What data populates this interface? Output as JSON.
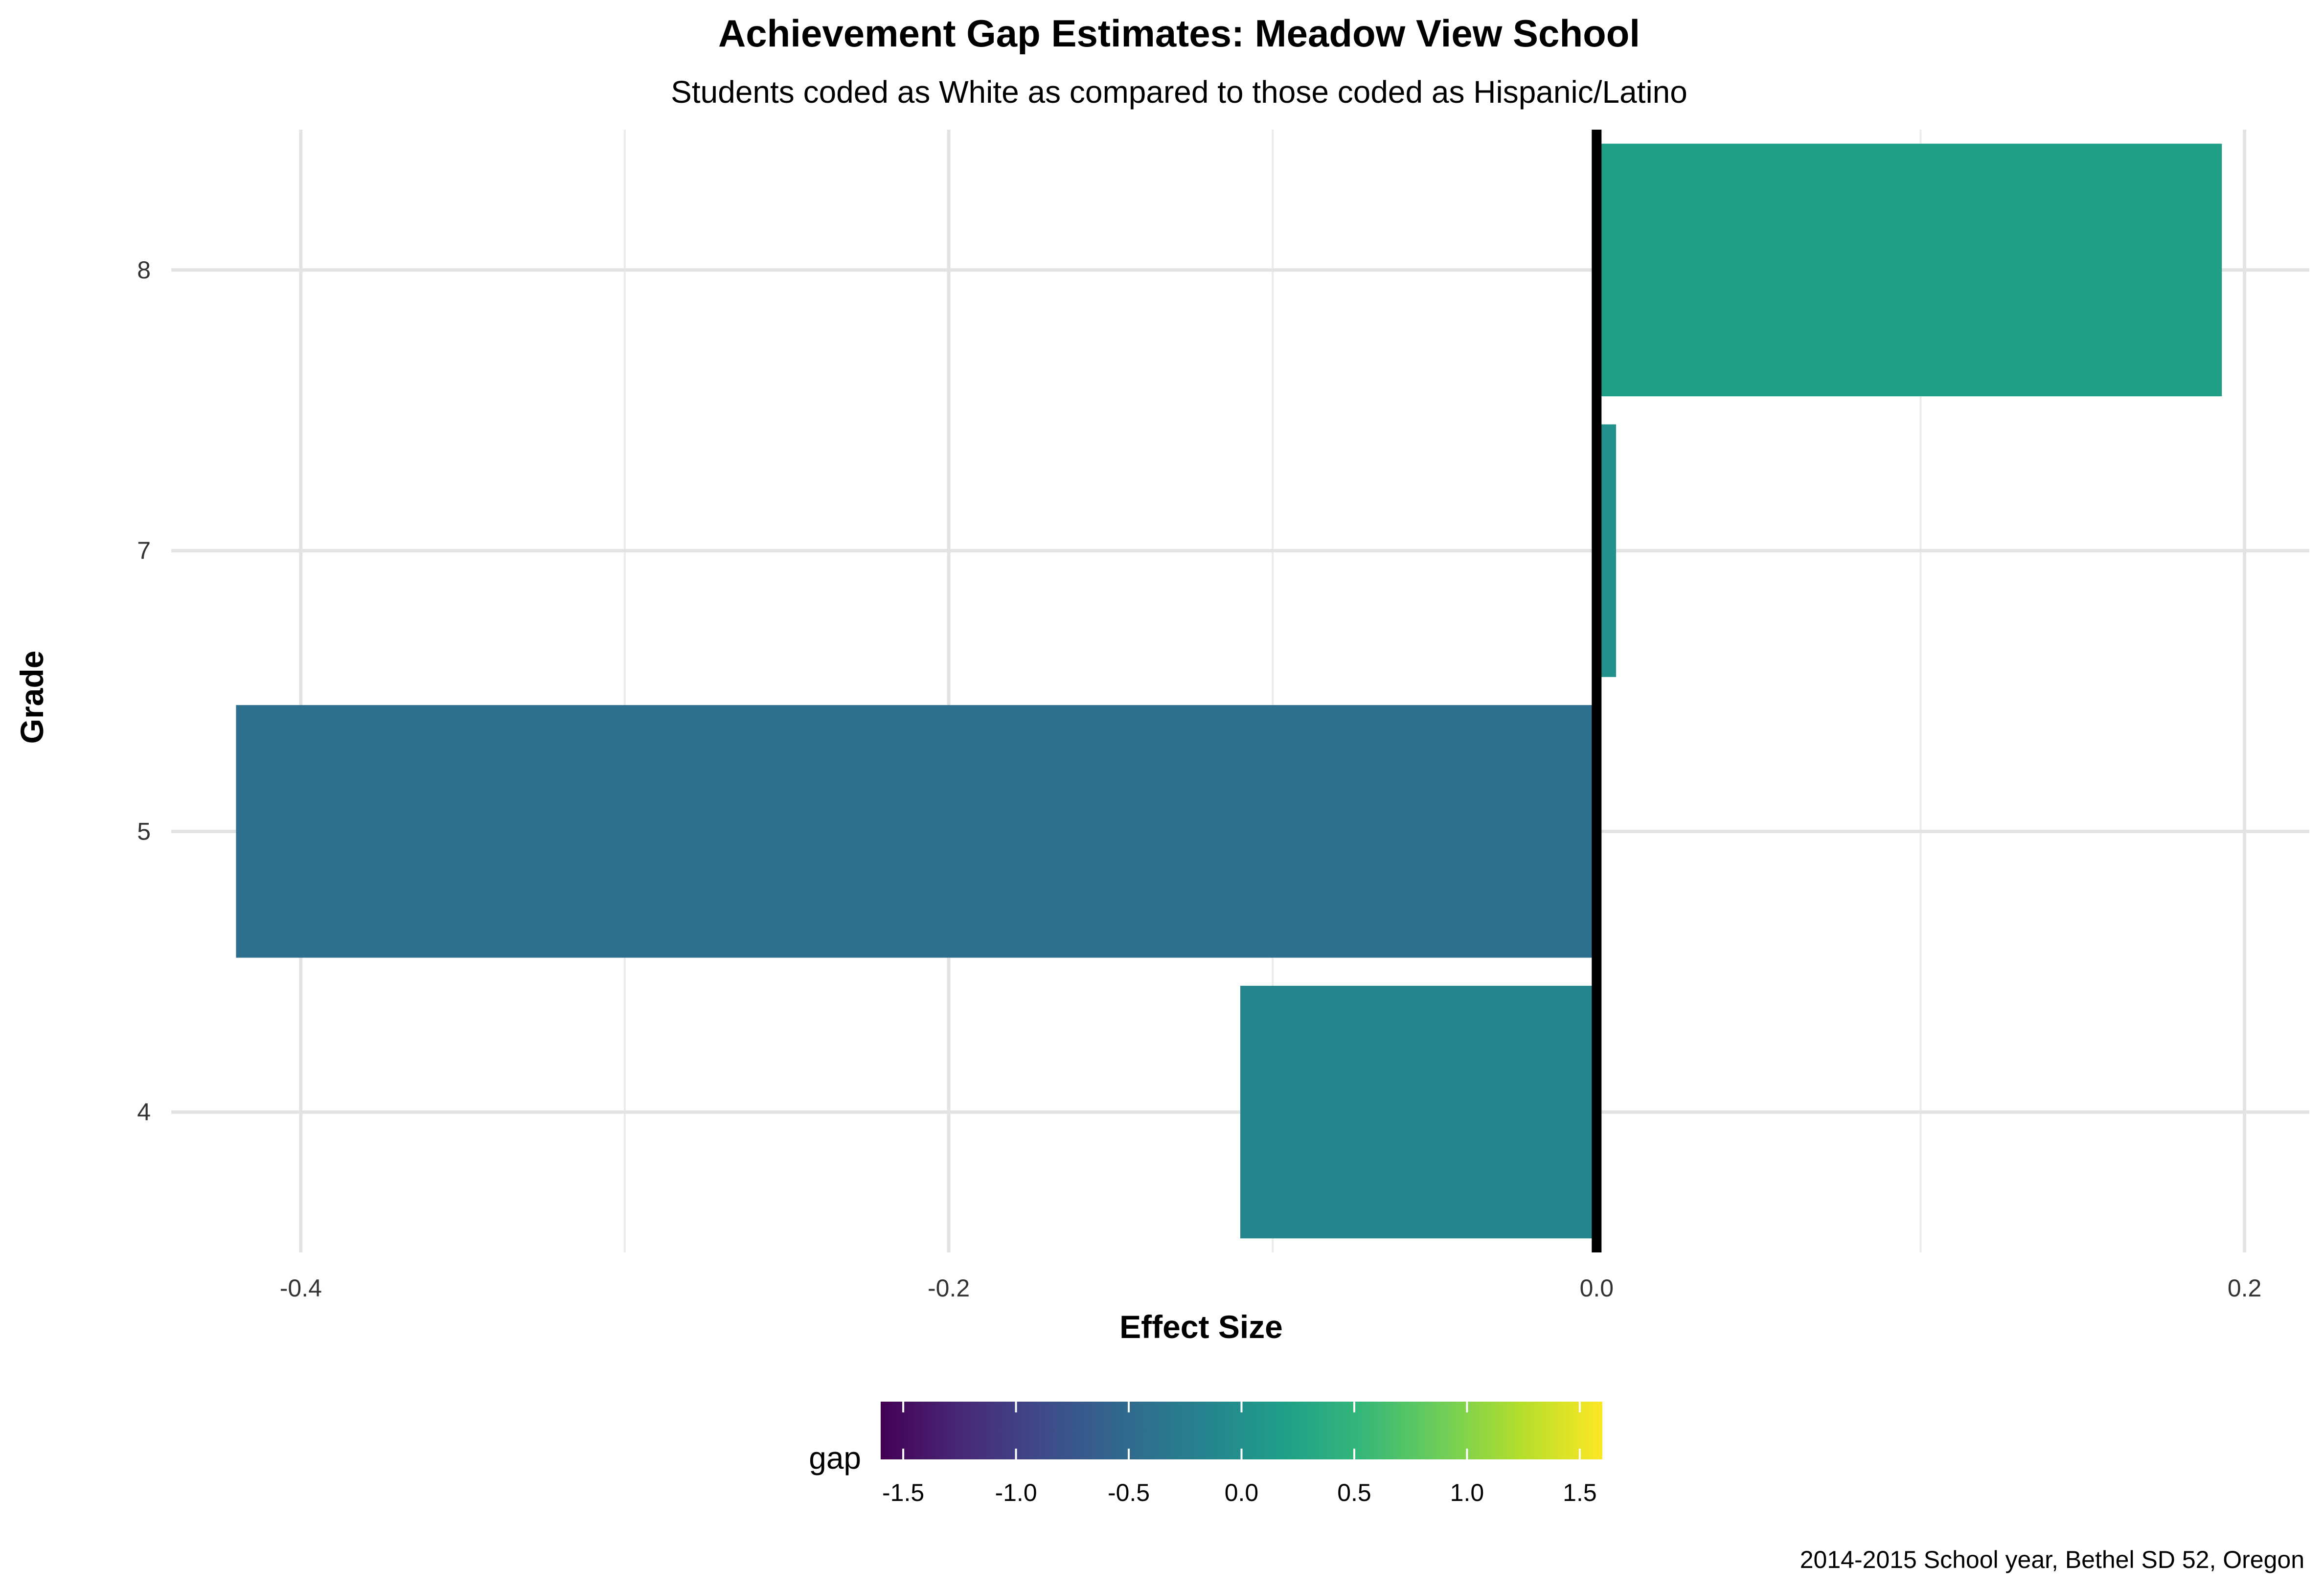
{
  "chart_data": {
    "type": "bar",
    "orientation": "horizontal",
    "title": "Achievement Gap Estimates: Meadow View School",
    "subtitle": "Students coded as White as compared to those coded as Hispanic/Latino",
    "xlabel": "Effect Size",
    "ylabel": "Grade",
    "caption": "2014-2015 School year, Bethel SD 52, Oregon",
    "categories": [
      "4",
      "5",
      "7",
      "8"
    ],
    "values": [
      -0.11,
      -0.42,
      0.006,
      0.193
    ],
    "xlim": [
      -0.44,
      0.22
    ],
    "x_ticks": [
      -0.4,
      -0.2,
      0.0,
      0.2
    ],
    "x_tick_labels": [
      "-0.4",
      "-0.2",
      "0.0",
      "0.2"
    ],
    "reference_line": 0,
    "grid": true,
    "legend": {
      "title": "gap",
      "type": "colorbar",
      "placement": "bottom",
      "range": [
        -1.6,
        1.6
      ],
      "ticks": [
        -1.5,
        -1.0,
        -0.5,
        0.0,
        0.5,
        1.0,
        1.5
      ],
      "tick_labels": [
        "-1.5",
        "-1.0",
        "-0.5",
        "0.0",
        "0.5",
        "1.0",
        "1.5"
      ],
      "palette": [
        "#440154",
        "#482878",
        "#3e4a89",
        "#31688e",
        "#26828e",
        "#1f9e89",
        "#35b779",
        "#6ece58",
        "#b5de2b",
        "#fde725"
      ]
    }
  }
}
